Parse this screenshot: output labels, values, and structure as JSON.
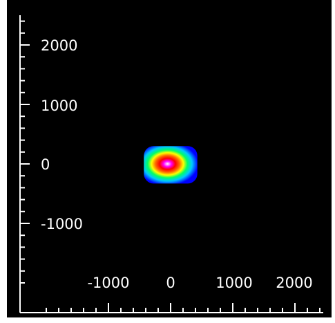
{
  "chart_data": {
    "type": "heatmap",
    "title": "",
    "xlabel": "",
    "ylabel": "",
    "xlim": [
      -1800,
      2400
    ],
    "ylim": [
      -2100,
      2550
    ],
    "x_ticks": [
      -1000,
      0,
      1000,
      2000
    ],
    "y_ticks": [
      2000,
      1000,
      0,
      -1000
    ],
    "x_tick_labels": [
      "-1000",
      "0",
      "1000",
      "2000"
    ],
    "y_tick_labels": [
      "2000",
      "1000",
      "0",
      "-1000"
    ],
    "grid": false,
    "background": "#000000",
    "axis_color": "#ffffff",
    "colormap": [
      "#0000ff",
      "#00c8ff",
      "#00ff66",
      "#ffff00",
      "#ff6600",
      "#ff0000",
      "#ff00ff",
      "#ffffff"
    ],
    "spot": {
      "center": [
        -50,
        0
      ],
      "extent_x": [
        -430,
        430
      ],
      "extent_y": [
        -330,
        300
      ],
      "peak_value": 1.0
    }
  }
}
